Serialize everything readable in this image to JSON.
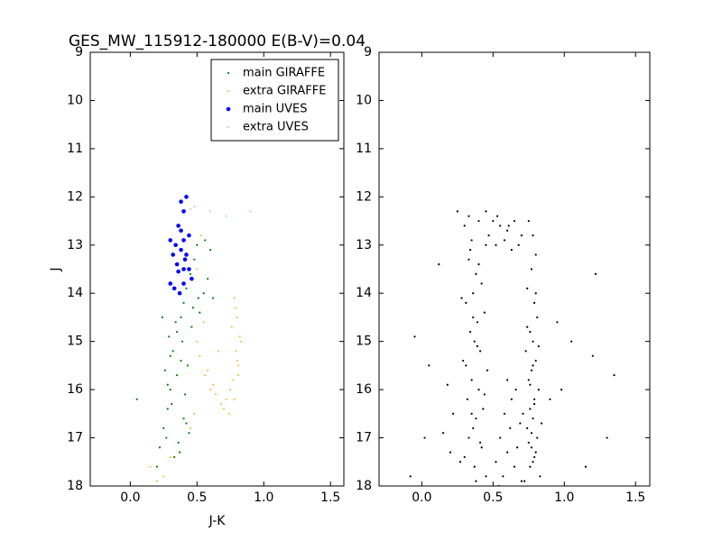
{
  "chart_data": [
    {
      "type": "scatter",
      "title": "GES_MW_115912-180000 E(B-V)=0.04",
      "xlabel": "J-K",
      "ylabel": "J",
      "xlim": [
        -0.3,
        1.6
      ],
      "ylim": [
        9,
        18
      ],
      "invert_y": true,
      "xticks": [
        {
          "value": 0,
          "label": "0.0"
        },
        0.5,
        {
          "value": 1,
          "label": "1.0"
        },
        1.5
      ],
      "yticks": [
        9,
        10,
        11,
        12,
        13,
        14,
        15,
        16,
        17,
        18
      ],
      "legend": "upper right",
      "series": [
        {
          "name": "main GIRAFFE",
          "color": "#008000",
          "marker": ".",
          "x": [
            0.05,
            0.2,
            0.22,
            0.25,
            0.28,
            0.3,
            0.26,
            0.32,
            0.35,
            0.38,
            0.4,
            0.42,
            0.45,
            0.48,
            0.5,
            0.52,
            0.55,
            0.58,
            0.6,
            0.33,
            0.36,
            0.28,
            0.3,
            0.4,
            0.44,
            0.27,
            0.31,
            0.35,
            0.39,
            0.43,
            0.47,
            0.51,
            0.37,
            0.41,
            0.29,
            0.34,
            0.38,
            0.42,
            0.46,
            0.62,
            0.56,
            0.24
          ],
          "values": [
            16.2,
            17.6,
            17.2,
            16.8,
            16.4,
            16.0,
            15.6,
            15.2,
            14.8,
            14.5,
            14.2,
            13.9,
            13.6,
            13.3,
            13.0,
            14.4,
            14.0,
            13.7,
            13.1,
            17.4,
            17.1,
            15.9,
            15.3,
            16.6,
            16.9,
            17.0,
            16.3,
            15.7,
            15.0,
            15.5,
            14.3,
            14.1,
            17.3,
            16.1,
            14.9,
            14.6,
            15.4,
            16.7,
            14.7,
            14.1,
            12.9,
            14.5
          ]
        },
        {
          "name": "extra GIRAFFE",
          "color": "#ffc04d",
          "marker": ".",
          "x": [
            0.78,
            0.8,
            0.82,
            0.79,
            0.81,
            0.77,
            0.75,
            0.8,
            0.83,
            0.76,
            0.72,
            0.68,
            0.64,
            0.6,
            0.56,
            0.52,
            0.5,
            0.55,
            0.62,
            0.7,
            0.74,
            0.78,
            0.81,
            0.79,
            0.66,
            0.58,
            0.48,
            0.45,
            0.3,
            0.25,
            0.2,
            0.15,
            0.1,
            0.5,
            0.53
          ],
          "values": [
            14.1,
            14.5,
            14.9,
            15.2,
            15.5,
            15.8,
            16.0,
            15.4,
            15.0,
            14.7,
            16.2,
            16.3,
            16.1,
            16.0,
            15.7,
            15.3,
            15.0,
            14.6,
            15.9,
            16.4,
            16.5,
            16.2,
            15.7,
            14.3,
            15.2,
            15.6,
            16.5,
            16.8,
            17.4,
            17.8,
            17.9,
            17.6,
            18.0,
            13.5,
            12.8
          ]
        },
        {
          "name": "main UVES",
          "color": "#0000ff",
          "marker": "o",
          "x": [
            0.38,
            0.42,
            0.4,
            0.36,
            0.3,
            0.34,
            0.38,
            0.4,
            0.44,
            0.32,
            0.38,
            0.42,
            0.35,
            0.4,
            0.44,
            0.3,
            0.33,
            0.4,
            0.46,
            0.37,
            0.41,
            0.36
          ],
          "values": [
            12.1,
            12.0,
            12.3,
            12.6,
            12.9,
            13.0,
            12.7,
            12.9,
            12.8,
            13.2,
            13.1,
            13.2,
            13.4,
            13.5,
            13.5,
            13.8,
            13.9,
            13.8,
            13.7,
            14.0,
            13.3,
            13.55
          ]
        },
        {
          "name": "extra UVES",
          "color": "#a8e6b8",
          "marker": ".",
          "x": [
            0.48,
            0.6,
            0.72,
            0.9,
            0.45
          ],
          "values": [
            12.2,
            12.3,
            12.4,
            12.3,
            12.25
          ]
        }
      ]
    },
    {
      "type": "scatter",
      "xlim": [
        -0.3,
        1.6
      ],
      "ylim": [
        9,
        18
      ],
      "invert_y": true,
      "xticks": [
        {
          "value": 0,
          "label": "0.0"
        },
        0.5,
        {
          "value": 1,
          "label": "1.0"
        },
        1.5
      ],
      "yticks": [
        9,
        10,
        11,
        12,
        13,
        14,
        15,
        16,
        17,
        18
      ],
      "series": [
        {
          "color": "#000000",
          "marker": ".",
          "x": [
            0.3,
            0.35,
            0.4,
            0.45,
            0.33,
            0.38,
            0.42,
            0.36,
            0.31,
            0.44,
            0.39,
            0.34,
            0.37,
            0.41,
            0.29,
            0.46,
            0.35,
            0.4,
            0.32,
            0.43,
            0.38,
            0.36,
            0.33,
            0.42,
            0.3,
            0.37,
            0.45,
            0.34,
            0.4,
            0.28,
            0.36,
            0.39,
            0.31,
            0.44,
            0.35,
            0.41,
            0.27,
            0.38,
            0.33,
            0.47,
            0.75,
            0.78,
            0.8,
            0.77,
            0.74,
            0.79,
            0.81,
            0.76,
            0.78,
            0.73,
            0.8,
            0.77,
            0.75,
            0.82,
            0.79,
            0.76,
            0.78,
            0.74,
            0.81,
            0.77,
            0.79,
            0.76,
            0.83,
            0.72,
            0.78,
            0.8,
            0.75,
            0.77,
            0.84,
            0.71,
            0.79,
            0.76,
            0.78,
            0.82,
            0.74,
            0.8,
            0.5,
            0.55,
            0.6,
            0.65,
            0.7,
            0.52,
            0.58,
            0.63,
            0.68,
            0.45,
            0.53,
            0.61,
            0.55,
            0.6,
            0.65,
            0.7,
            0.58,
            0.62,
            0.67,
            0.52,
            0.57,
            0.63,
            0.69,
            0.54,
            0.6,
            0.66,
            0.12,
            0.05,
            -0.05,
            0.18,
            0.22,
            -0.08,
            0.02,
            0.95,
            1.05,
            1.2,
            1.35,
            1.3,
            1.22,
            0.9,
            0.98,
            1.15,
            0.2,
            0.15,
            0.25
          ],
          "values": [
            12.6,
            12.9,
            12.5,
            13.0,
            13.3,
            13.6,
            13.8,
            14.0,
            14.2,
            14.4,
            14.6,
            14.8,
            15.0,
            15.2,
            15.4,
            15.6,
            15.8,
            16.0,
            16.2,
            16.4,
            16.6,
            16.8,
            17.0,
            17.2,
            17.4,
            17.6,
            17.8,
            13.1,
            13.4,
            14.1,
            14.5,
            15.1,
            15.5,
            16.1,
            16.5,
            17.1,
            17.5,
            17.9,
            12.4,
            12.8,
            12.5,
            12.8,
            13.2,
            13.5,
            13.9,
            14.2,
            14.5,
            14.8,
            15.0,
            15.2,
            15.4,
            15.6,
            15.8,
            16.0,
            16.2,
            16.4,
            16.6,
            16.8,
            17.0,
            17.2,
            17.4,
            17.6,
            17.8,
            17.9,
            17.5,
            17.3,
            17.1,
            16.9,
            16.7,
            16.5,
            16.3,
            15.9,
            15.5,
            15.1,
            14.7,
            14.0,
            12.5,
            12.6,
            12.7,
            12.5,
            12.8,
            13.0,
            12.9,
            13.1,
            13.0,
            12.3,
            12.4,
            12.6,
            17.0,
            17.3,
            17.6,
            17.9,
            16.5,
            16.8,
            17.2,
            17.5,
            17.8,
            16.2,
            16.7,
            18.0,
            15.8,
            16.0,
            13.4,
            15.5,
            14.9,
            15.9,
            16.5,
            17.8,
            17.0,
            14.6,
            15.0,
            15.3,
            15.7,
            17.0,
            13.6,
            16.2,
            16.0,
            17.6,
            17.3,
            16.9,
            12.3
          ]
        }
      ]
    }
  ]
}
